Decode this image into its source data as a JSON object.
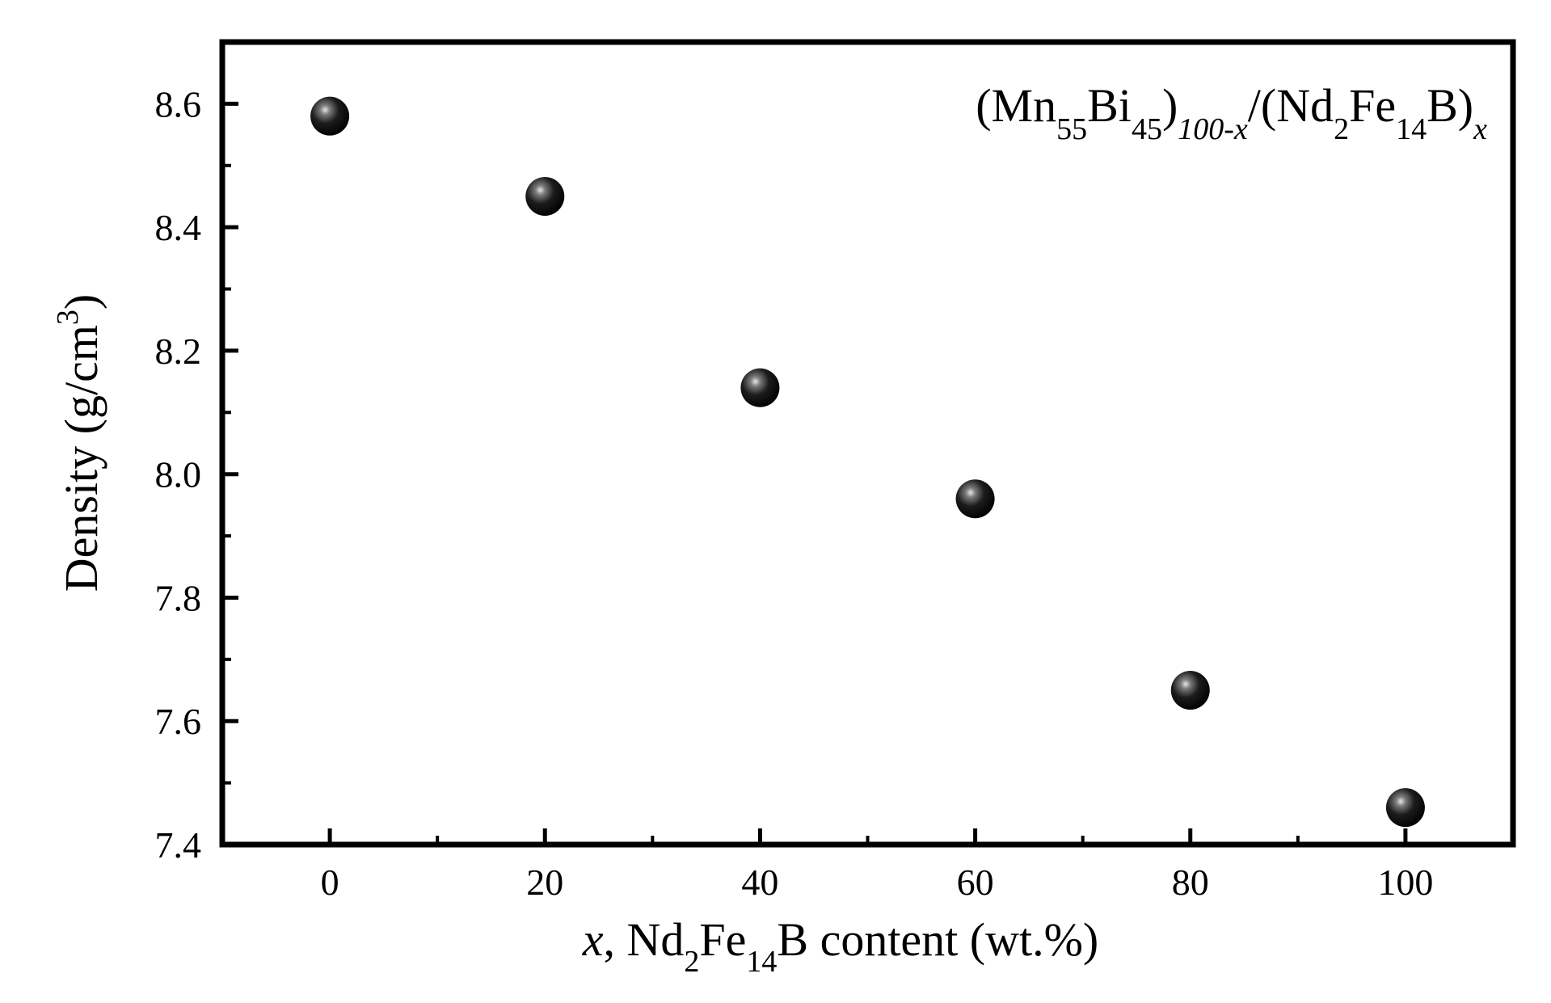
{
  "chart_data": {
    "type": "scatter",
    "xlabel": "x, Nd2Fe14B content (wt.%)",
    "ylabel": "Density (g/cm3)",
    "xlim": [
      -10,
      110
    ],
    "ylim": [
      7.4,
      8.7
    ],
    "x_ticks": [
      0,
      20,
      40,
      60,
      80,
      100
    ],
    "y_ticks": [
      7.4,
      7.6,
      7.8,
      8.0,
      8.2,
      8.4,
      8.6
    ],
    "x_tick_labels": [
      "0",
      "20",
      "40",
      "60",
      "80",
      "100"
    ],
    "y_tick_labels": [
      "7.4",
      "7.6",
      "7.8",
      "8.0",
      "8.2",
      "8.4",
      "8.6"
    ],
    "grid": false,
    "annotation": "(Mn55Bi45)100-x/(Nd2Fe14B)x",
    "series": [
      {
        "x": [
          0,
          20,
          40,
          60,
          80,
          100
        ],
        "y": [
          8.58,
          8.45,
          8.14,
          7.96,
          7.65,
          7.46
        ],
        "marker": "sphere",
        "color": "#000000"
      }
    ]
  },
  "texts": {
    "xlabel_x": "x",
    "xlabel_part1": ", Nd",
    "xlabel_sub1": "2",
    "xlabel_part2": "Fe",
    "xlabel_sub2": "14",
    "xlabel_part3": "B content (wt.%)",
    "ylabel_main": "Density (g/cm",
    "ylabel_sup": "3",
    "ylabel_close": ")",
    "annot_open": "(Mn",
    "annot_sub1": "55",
    "annot_bi": "Bi",
    "annot_sub2": "45",
    "annot_close": ")",
    "annot_sub3": "100-x",
    "annot_nd": "/(Nd",
    "annot_sub4": "2",
    "annot_fe": "Fe",
    "annot_sub5": "14",
    "annot_b": "B)",
    "annot_sub6": "x"
  }
}
